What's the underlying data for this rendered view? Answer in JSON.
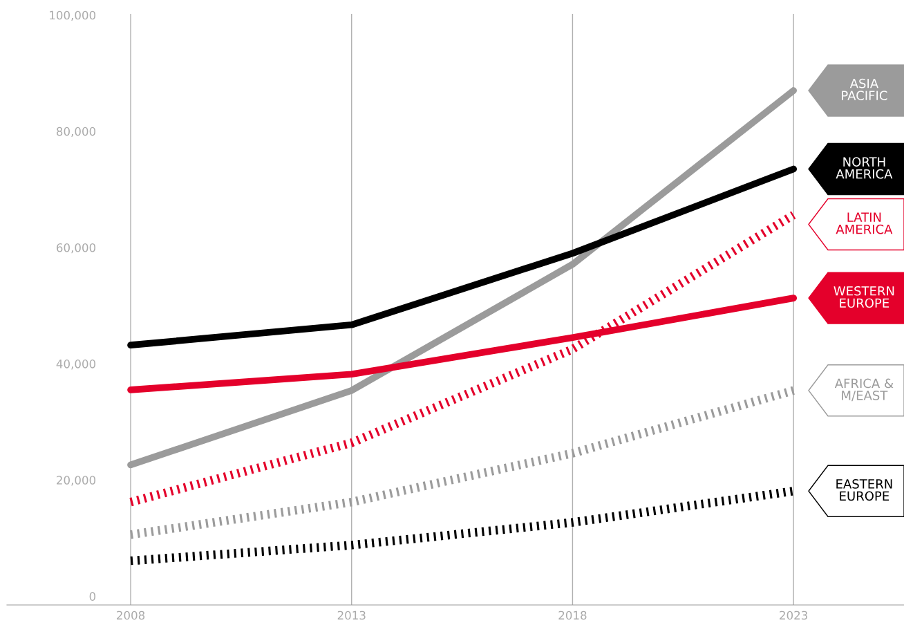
{
  "chart_data": {
    "type": "line",
    "x": [
      2008,
      2013,
      2018,
      2023
    ],
    "xlim": [
      2005.2,
      2025.5
    ],
    "xticks": [
      2008,
      2013,
      2018,
      2023
    ],
    "ylim": [
      -1500,
      100200
    ],
    "yticks": [
      0,
      {
        "value": 20000,
        "label": "20,000"
      },
      {
        "value": 40000,
        "label": "40,000"
      },
      {
        "value": 60000,
        "label": "60,000"
      },
      {
        "value": 80000,
        "label": "80,000"
      },
      {
        "value": 100000,
        "label": "100,000"
      }
    ],
    "grid": "x",
    "legend": false,
    "marker": "none",
    "series": [
      {
        "name": "ASIA\nPACIFIC",
        "color": "#9b9b9b",
        "line_style": "solid",
        "values": [
          22600,
          35400,
          57100,
          87000
        ]
      },
      {
        "name": "NORTH\nAMERICA",
        "color": "#000000",
        "line_style": "solid",
        "values": [
          43200,
          46700,
          59000,
          73500
        ]
      },
      {
        "name": "LATIN\nAMERICA",
        "color": "#e4002b",
        "line_style": "dotted",
        "values": [
          16200,
          26400,
          42500,
          65600
        ]
      },
      {
        "name": "WESTERN\nEUROPE",
        "color": "#e4002b",
        "line_style": "solid",
        "values": [
          35500,
          38200,
          44500,
          51300
        ]
      },
      {
        "name": "AFRICA &\nM/EAST",
        "color": "#9b9b9b",
        "line_style": "dotted",
        "values": [
          10600,
          16200,
          24600,
          35400
        ]
      },
      {
        "name": "EASTERN\nEUROPE",
        "color": "#000000",
        "line_style": "dotted",
        "values": [
          6100,
          8800,
          12700,
          18100
        ]
      }
    ]
  }
}
